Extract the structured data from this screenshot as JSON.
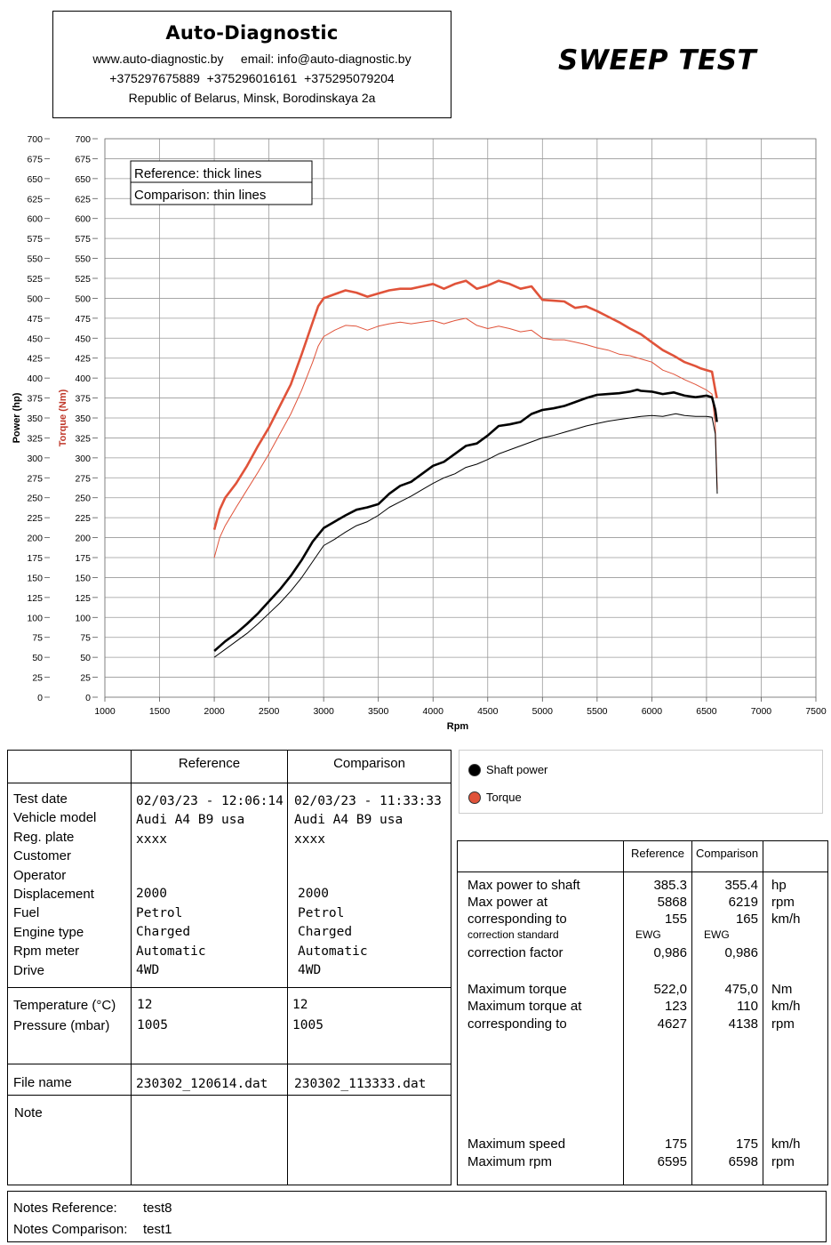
{
  "header": {
    "brand": "Auto-Diagnostic",
    "line1": "www.auto-diagnostic.by     email: info@auto-diagnostic.by",
    "line2": "+375297675889  +375296016161  +375295079204",
    "line3": "Republic of Belarus, Minsk, Borodinskaya 2a",
    "title": "SWEEP TEST"
  },
  "chart_data": {
    "type": "line",
    "xlabel": "Rpm",
    "ylabel_power": "Power (hp)",
    "ylabel_torque": "Torque (Nm)",
    "xlim": [
      1000,
      7500
    ],
    "ylim": [
      0,
      700
    ],
    "x_ticks": [
      1000,
      1500,
      2000,
      2500,
      3000,
      3500,
      4000,
      4500,
      5000,
      5500,
      6000,
      6500,
      7000,
      7500
    ],
    "y_ticks": [
      0,
      25,
      50,
      75,
      100,
      125,
      150,
      175,
      200,
      225,
      250,
      275,
      300,
      325,
      350,
      375,
      400,
      425,
      450,
      475,
      500,
      525,
      550,
      575,
      600,
      625,
      650,
      675,
      700
    ],
    "grid": true,
    "note_box": [
      "Reference: thick lines",
      "Comparison: thin lines"
    ],
    "colors": {
      "power": "#000000",
      "torque": "#e0533a"
    },
    "series": [
      {
        "name": "Torque",
        "style": "thick",
        "color": "#e0533a",
        "x": [
          2000,
          2050,
          2100,
          2200,
          2300,
          2400,
          2500,
          2600,
          2700,
          2800,
          2900,
          2950,
          3000,
          3100,
          3200,
          3300,
          3400,
          3500,
          3600,
          3700,
          3800,
          3900,
          4000,
          4100,
          4200,
          4300,
          4400,
          4500,
          4600,
          4700,
          4800,
          4900,
          5000,
          5100,
          5200,
          5300,
          5400,
          5500,
          5600,
          5700,
          5800,
          5900,
          6000,
          6100,
          6200,
          6300,
          6400,
          6450,
          6500,
          6550,
          6580,
          6595
        ],
        "y": [
          210,
          235,
          250,
          268,
          290,
          315,
          338,
          365,
          392,
          430,
          470,
          490,
          500,
          505,
          510,
          507,
          502,
          506,
          510,
          512,
          512,
          515,
          518,
          512,
          518,
          522,
          512,
          516,
          522,
          518,
          512,
          515,
          498,
          497,
          496,
          488,
          490,
          484,
          477,
          470,
          462,
          455,
          445,
          435,
          428,
          420,
          415,
          412,
          410,
          408,
          385,
          375
        ]
      },
      {
        "name": "Torque",
        "style": "thin",
        "color": "#e0533a",
        "x": [
          2000,
          2050,
          2100,
          2200,
          2300,
          2400,
          2500,
          2600,
          2700,
          2800,
          2900,
          2950,
          3000,
          3100,
          3200,
          3300,
          3400,
          3500,
          3600,
          3700,
          3800,
          3900,
          4000,
          4100,
          4200,
          4300,
          4400,
          4500,
          4600,
          4700,
          4800,
          4900,
          5000,
          5100,
          5200,
          5300,
          5400,
          5500,
          5600,
          5700,
          5800,
          5900,
          6000,
          6100,
          6200,
          6300,
          6400,
          6500,
          6550,
          6580,
          6598
        ],
        "y": [
          175,
          200,
          215,
          238,
          260,
          282,
          305,
          330,
          355,
          385,
          420,
          440,
          452,
          460,
          466,
          465,
          460,
          465,
          468,
          470,
          468,
          470,
          472,
          468,
          472,
          475,
          466,
          462,
          465,
          462,
          458,
          460,
          450,
          448,
          448,
          445,
          442,
          438,
          435,
          430,
          428,
          424,
          420,
          410,
          405,
          398,
          392,
          385,
          380,
          340,
          260
        ]
      },
      {
        "name": "Shaft power",
        "style": "thick",
        "color": "#000000",
        "x": [
          2000,
          2100,
          2200,
          2300,
          2400,
          2500,
          2600,
          2700,
          2800,
          2900,
          3000,
          3100,
          3200,
          3300,
          3400,
          3500,
          3600,
          3700,
          3800,
          3900,
          4000,
          4100,
          4200,
          4300,
          4400,
          4500,
          4600,
          4700,
          4800,
          4900,
          5000,
          5100,
          5200,
          5300,
          5400,
          5500,
          5600,
          5700,
          5800,
          5868,
          5900,
          6000,
          6100,
          6200,
          6300,
          6400,
          6500,
          6550,
          6580,
          6595
        ],
        "y": [
          58,
          70,
          80,
          92,
          105,
          120,
          135,
          152,
          172,
          195,
          212,
          220,
          228,
          235,
          238,
          242,
          255,
          265,
          270,
          280,
          290,
          295,
          305,
          315,
          318,
          328,
          340,
          342,
          345,
          355,
          360,
          362,
          365,
          370,
          375,
          379,
          380,
          381,
          383,
          385.3,
          384,
          383,
          380,
          382,
          378,
          376,
          378,
          376,
          360,
          345
        ]
      },
      {
        "name": "Shaft power",
        "style": "thin",
        "color": "#000000",
        "x": [
          2000,
          2100,
          2200,
          2300,
          2400,
          2500,
          2600,
          2700,
          2800,
          2900,
          3000,
          3100,
          3200,
          3300,
          3400,
          3500,
          3600,
          3700,
          3800,
          3900,
          4000,
          4100,
          4200,
          4300,
          4400,
          4500,
          4600,
          4700,
          4800,
          4900,
          5000,
          5100,
          5200,
          5300,
          5400,
          5500,
          5600,
          5700,
          5800,
          5900,
          6000,
          6100,
          6219,
          6300,
          6400,
          6500,
          6550,
          6580,
          6598
        ],
        "y": [
          50,
          60,
          70,
          80,
          92,
          105,
          118,
          133,
          150,
          170,
          190,
          198,
          207,
          215,
          220,
          228,
          238,
          245,
          252,
          260,
          268,
          275,
          280,
          288,
          292,
          298,
          305,
          310,
          315,
          320,
          325,
          328,
          332,
          336,
          340,
          343,
          346,
          348,
          350,
          352,
          353,
          352,
          355.4,
          353,
          352,
          352,
          351,
          330,
          255
        ]
      }
    ]
  },
  "left_table": {
    "col_reference": "Reference",
    "col_comparison": "Comparison",
    "labels": [
      "Test date",
      "Vehicle model",
      "Reg. plate",
      "Customer",
      "Operator",
      "Displacement",
      "Fuel",
      "Engine type",
      "Rpm meter",
      "Drive"
    ],
    "ref_top": [
      "02/03/23 - 12:06:14",
      "Audi A4 B9 usa",
      "xxxx"
    ],
    "cmp_top": [
      "02/03/23 - 11:33:33",
      "Audi A4 B9 usa",
      "xxxx"
    ],
    "ref_mid": [
      "2000",
      "Petrol",
      "Charged",
      "Automatic",
      "4WD"
    ],
    "cmp_mid": [
      "2000",
      "Petrol",
      "Charged",
      "Automatic",
      "4WD"
    ],
    "env_labels": [
      "Temperature (°C)",
      "Pressure (mbar)"
    ],
    "ref_env": [
      "12",
      "1005"
    ],
    "cmp_env": [
      "12",
      "1005"
    ],
    "file_label": "File name",
    "ref_file": "230302_120614.dat",
    "cmp_file": "230302_113333.dat",
    "note_label": "Note"
  },
  "legend": {
    "power_label": "Shaft power",
    "torque_label": "Torque",
    "power_color": "#000000",
    "torque_color": "#e0533a"
  },
  "stats": {
    "col_reference": "Reference",
    "col_comparison": "Comparison",
    "max_power_label": "Max power to shaft",
    "max_power_ref": "385.3",
    "max_power_cmp": "355.4",
    "max_power_unit": "hp",
    "max_power_at_label": "Max power at",
    "max_power_at_ref": "5868",
    "max_power_at_cmp": "6219",
    "max_power_at_unit": "rpm",
    "corr_to_label": "corresponding to",
    "corr_to_ref": "155",
    "corr_to_cmp": "165",
    "corr_to_unit": "km/h",
    "corr_std_label": "correction standard",
    "corr_std_ref": "EWG",
    "corr_std_cmp": "EWG",
    "corr_factor_label": "correction factor",
    "corr_factor_ref": "0,986",
    "corr_factor_cmp": "0,986",
    "max_torque_label": "Maximum torque",
    "max_torque_ref": "522,0",
    "max_torque_cmp": "475,0",
    "max_torque_unit": "Nm",
    "max_torque_at_label": "Maximum torque at",
    "max_torque_at_ref": "123",
    "max_torque_at_cmp": "110",
    "max_torque_at_unit": "km/h",
    "torque_corr_label": "corresponding to",
    "torque_corr_ref": "4627",
    "torque_corr_cmp": "4138",
    "torque_corr_unit": "rpm",
    "max_speed_label": "Maximum speed",
    "max_speed_ref": "175",
    "max_speed_cmp": "175",
    "max_speed_unit": "km/h",
    "max_rpm_label": "Maximum rpm",
    "max_rpm_ref": "6595",
    "max_rpm_cmp": "6598",
    "max_rpm_unit": "rpm"
  },
  "notes": {
    "ref_label": "Notes Reference:",
    "ref_value": "test8",
    "cmp_label": "Notes Comparison:",
    "cmp_value": "test1"
  }
}
